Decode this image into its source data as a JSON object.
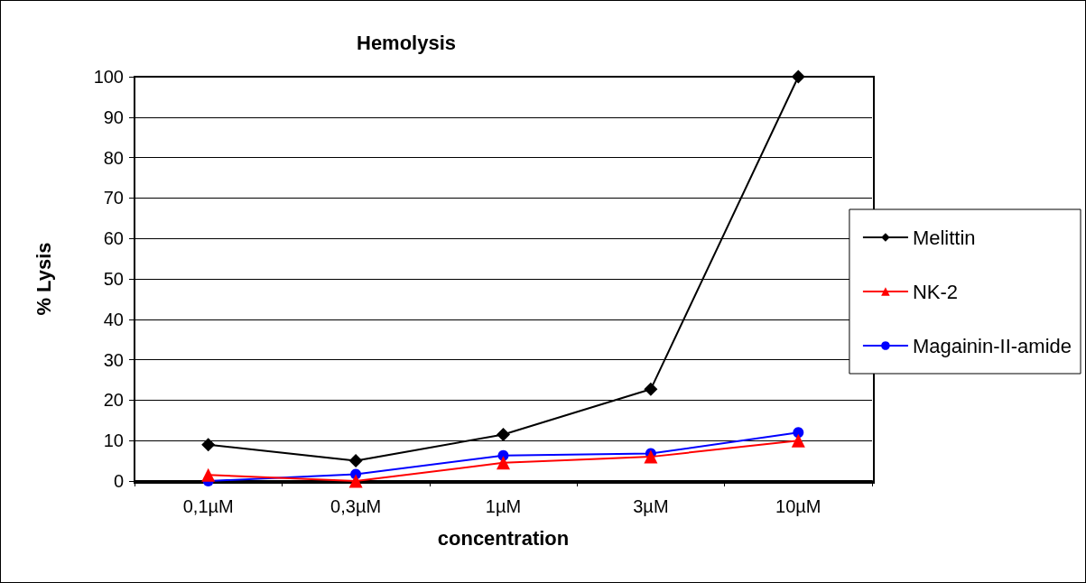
{
  "chart_data": {
    "type": "line",
    "title": "Hemolysis",
    "xlabel": "concentration",
    "ylabel": "% Lysis",
    "categories": [
      "0,1µM",
      "0,3µM",
      "1µM",
      "3µM",
      "10µM"
    ],
    "series": [
      {
        "name": "Melittin",
        "color": "#000000",
        "marker": "diamond",
        "values": [
          9,
          5,
          11.5,
          22.7,
          100
        ]
      },
      {
        "name": "NK-2",
        "color": "#ff0000",
        "marker": "triangle",
        "values": [
          1.5,
          0,
          4.5,
          6,
          10
        ]
      },
      {
        "name": "Magainin-II-amide",
        "color": "#0000ff",
        "marker": "circle",
        "values": [
          0,
          1.7,
          6.3,
          6.8,
          12
        ]
      }
    ],
    "ylim": [
      0,
      100
    ],
    "yticks": [
      0,
      10,
      20,
      30,
      40,
      50,
      60,
      70,
      80,
      90,
      100
    ],
    "grid": "y",
    "legend": "right",
    "line_style": "solid"
  }
}
